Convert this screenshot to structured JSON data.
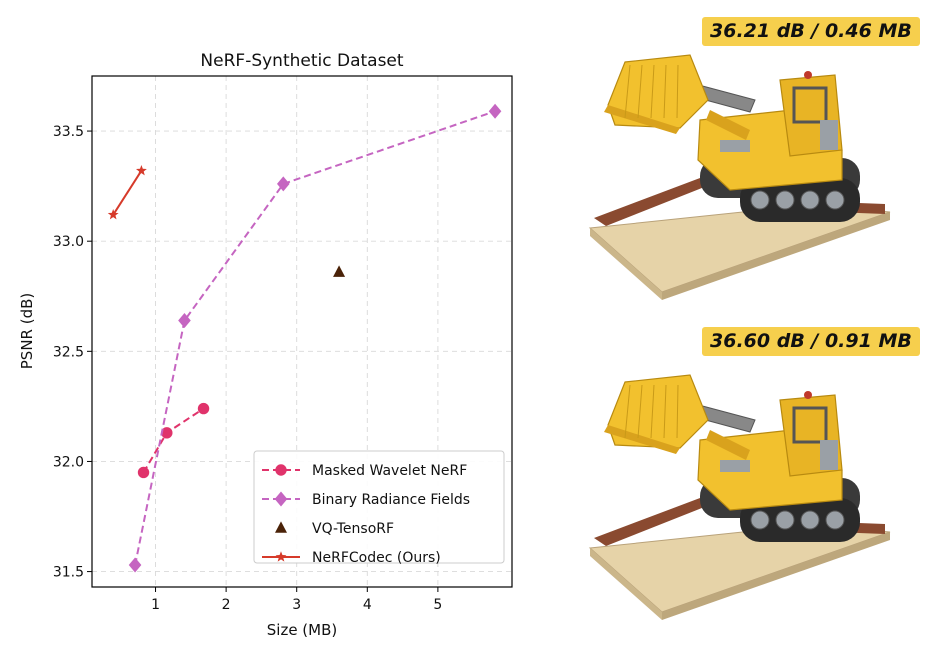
{
  "chart_data": {
    "type": "line",
    "title": "NeRF-Synthetic Dataset",
    "xlabel": "Size (MB)",
    "ylabel": "PSNR (dB)",
    "xlim": [
      0.1,
      6.05
    ],
    "ylim": [
      31.43,
      33.75
    ],
    "xticks": [
      1,
      2,
      3,
      4,
      5
    ],
    "yticks": [
      31.5,
      32.0,
      32.5,
      33.0,
      33.5
    ],
    "xtick_labels": [
      "1",
      "2",
      "3",
      "4",
      "5"
    ],
    "ytick_labels": [
      "31.5",
      "32.0",
      "32.5",
      "33.0",
      "33.5"
    ],
    "grid": true,
    "legend_position": "lower-right",
    "series": [
      {
        "name": "Masked Wavelet NeRF",
        "color": "#e0336b",
        "linestyle": "dashed",
        "marker": "circle",
        "x": [
          0.83,
          1.16,
          1.68
        ],
        "y": [
          31.95,
          32.13,
          32.24
        ]
      },
      {
        "name": "Binary Radiance Fields",
        "color": "#c565c1",
        "linestyle": "dashed",
        "marker": "diamond",
        "x": [
          0.71,
          1.41,
          2.81,
          5.81
        ],
        "y": [
          31.53,
          32.64,
          33.26,
          33.59
        ]
      },
      {
        "name": "VQ-TensoRF",
        "color": "#4a2208",
        "linestyle": "none",
        "marker": "triangle",
        "x": [
          3.6
        ],
        "y": [
          32.86
        ]
      },
      {
        "name": "NeRFCodec (Ours)",
        "color": "#d63a2a",
        "linestyle": "solid",
        "marker": "star",
        "x": [
          0.4,
          0.8
        ],
        "y": [
          33.12,
          33.32
        ]
      }
    ]
  },
  "renders": {
    "top_label": "36.21 dB / 0.46 MB",
    "bottom_label": "36.60 dB / 0.91 MB"
  },
  "colors": {
    "badge": "#f6cf4d",
    "lego_yellow": "#f2c12e",
    "baseplate": "#e6d3a8",
    "brick": "#8a4a30"
  }
}
